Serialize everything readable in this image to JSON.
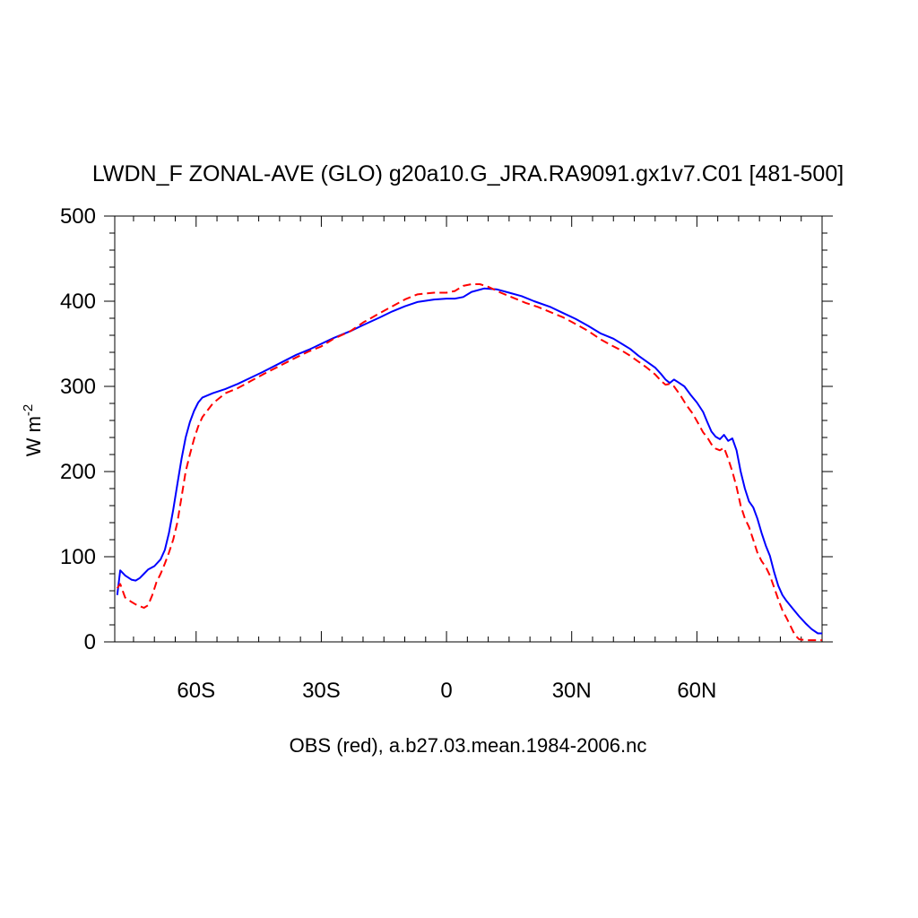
{
  "chart_data": {
    "type": "line",
    "title": "LWDN_F ZONAL-AVE (GLO) g20a10.G_JRA.RA9091.gx1v7.C01 [481-500]",
    "xlabel": "OBS (red), a.b27.03.mean.1984-2006.nc",
    "ylabel": {
      "base": "W m",
      "superscript": "-2"
    },
    "xlim": [
      -79.5,
      90
    ],
    "ylim": [
      0,
      500
    ],
    "x_ticks": [
      {
        "value": -60,
        "label": "60S"
      },
      {
        "value": -30,
        "label": "30S"
      },
      {
        "value": 0,
        "label": "0"
      },
      {
        "value": 30,
        "label": "30N"
      },
      {
        "value": 60,
        "label": "60N"
      }
    ],
    "y_ticks": [
      {
        "value": 0,
        "label": "0"
      },
      {
        "value": 100,
        "label": "100"
      },
      {
        "value": 200,
        "label": "200"
      },
      {
        "value": 300,
        "label": "300"
      },
      {
        "value": 400,
        "label": "400"
      },
      {
        "value": 500,
        "label": "500"
      }
    ],
    "x_minor_step": 5,
    "y_minor_step": 20,
    "grid": false,
    "legend": "none",
    "series": [
      {
        "color": "#0000ff",
        "dash": "solid",
        "points": [
          [
            -78.9,
            55
          ],
          [
            -78.2,
            84
          ],
          [
            -77,
            78
          ],
          [
            -75.5,
            73
          ],
          [
            -74.5,
            72
          ],
          [
            -73.5,
            75
          ],
          [
            -72.5,
            80
          ],
          [
            -71.5,
            85
          ],
          [
            -70,
            89
          ],
          [
            -68.5,
            97
          ],
          [
            -67.5,
            108
          ],
          [
            -66.5,
            128
          ],
          [
            -65.5,
            155
          ],
          [
            -64.5,
            185
          ],
          [
            -63.5,
            215
          ],
          [
            -62.5,
            240
          ],
          [
            -61.5,
            258
          ],
          [
            -60.5,
            271
          ],
          [
            -59.5,
            281
          ],
          [
            -58.5,
            287
          ],
          [
            -56,
            292
          ],
          [
            -53,
            297
          ],
          [
            -50,
            303
          ],
          [
            -47,
            310
          ],
          [
            -44,
            317
          ],
          [
            -40,
            327
          ],
          [
            -36,
            337
          ],
          [
            -33,
            343
          ],
          [
            -30,
            350
          ],
          [
            -27,
            357
          ],
          [
            -23,
            365
          ],
          [
            -20,
            372
          ],
          [
            -16,
            381
          ],
          [
            -13,
            388
          ],
          [
            -10,
            394
          ],
          [
            -7,
            399
          ],
          [
            -3,
            402
          ],
          [
            0,
            403
          ],
          [
            2,
            403
          ],
          [
            4,
            405
          ],
          [
            6,
            411
          ],
          [
            9,
            415
          ],
          [
            12,
            414
          ],
          [
            15,
            410
          ],
          [
            18,
            406
          ],
          [
            21,
            400
          ],
          [
            25,
            393
          ],
          [
            28,
            386
          ],
          [
            31,
            379
          ],
          [
            34,
            371
          ],
          [
            37,
            362
          ],
          [
            40,
            356
          ],
          [
            42,
            350
          ],
          [
            44,
            344
          ],
          [
            46,
            336
          ],
          [
            48,
            329
          ],
          [
            50,
            322
          ],
          [
            51.5,
            314
          ],
          [
            52.5,
            308
          ],
          [
            53.5,
            304
          ],
          [
            54.5,
            308
          ],
          [
            55.5,
            305
          ],
          [
            57,
            300
          ],
          [
            58.5,
            290
          ],
          [
            60,
            281
          ],
          [
            61.5,
            270
          ],
          [
            62.5,
            258
          ],
          [
            63.5,
            247
          ],
          [
            64.5,
            241
          ],
          [
            65.5,
            238
          ],
          [
            66.5,
            243
          ],
          [
            67.5,
            236
          ],
          [
            68.5,
            239
          ],
          [
            69.5,
            225
          ],
          [
            70.5,
            200
          ],
          [
            71.5,
            180
          ],
          [
            72.5,
            165
          ],
          [
            73.5,
            158
          ],
          [
            74.5,
            145
          ],
          [
            75.5,
            128
          ],
          [
            76.5,
            113
          ],
          [
            77.5,
            101
          ],
          [
            78.5,
            82
          ],
          [
            79.5,
            66
          ],
          [
            80.5,
            55
          ],
          [
            81.5,
            48
          ],
          [
            83,
            39
          ],
          [
            84.5,
            30
          ],
          [
            86,
            22
          ],
          [
            87.5,
            15
          ],
          [
            89,
            10
          ],
          [
            90,
            10
          ]
        ]
      },
      {
        "color": "#ff0000",
        "dash": "dashed",
        "points": [
          [
            -78.9,
            63
          ],
          [
            -78.2,
            68
          ],
          [
            -77,
            52
          ],
          [
            -75.5,
            47
          ],
          [
            -74.5,
            44
          ],
          [
            -73.5,
            42
          ],
          [
            -72.5,
            40
          ],
          [
            -71.5,
            43
          ],
          [
            -70.5,
            55
          ],
          [
            -69.5,
            70
          ],
          [
            -68.5,
            80
          ],
          [
            -67.5,
            92
          ],
          [
            -66.5,
            105
          ],
          [
            -65.5,
            120
          ],
          [
            -64.5,
            140
          ],
          [
            -63.5,
            170
          ],
          [
            -62.5,
            200
          ],
          [
            -61.5,
            220
          ],
          [
            -60.5,
            238
          ],
          [
            -59.5,
            253
          ],
          [
            -58.5,
            264
          ],
          [
            -56,
            280
          ],
          [
            -53,
            292
          ],
          [
            -50,
            298
          ],
          [
            -47,
            306
          ],
          [
            -44,
            314
          ],
          [
            -40,
            324
          ],
          [
            -36,
            334
          ],
          [
            -33,
            341
          ],
          [
            -30,
            347
          ],
          [
            -27,
            356
          ],
          [
            -23,
            365
          ],
          [
            -20,
            375
          ],
          [
            -16,
            386
          ],
          [
            -13,
            394
          ],
          [
            -10,
            402
          ],
          [
            -7,
            408
          ],
          [
            -3,
            410
          ],
          [
            0,
            410
          ],
          [
            2,
            412
          ],
          [
            4,
            418
          ],
          [
            6,
            420
          ],
          [
            8,
            420
          ],
          [
            10,
            417
          ],
          [
            13,
            410
          ],
          [
            16,
            404
          ],
          [
            19,
            398
          ],
          [
            22,
            393
          ],
          [
            25,
            387
          ],
          [
            28,
            381
          ],
          [
            31,
            373
          ],
          [
            34,
            365
          ],
          [
            37,
            355
          ],
          [
            40,
            347
          ],
          [
            42,
            342
          ],
          [
            44,
            336
          ],
          [
            46,
            329
          ],
          [
            48,
            322
          ],
          [
            50,
            314
          ],
          [
            51.5,
            306
          ],
          [
            52.5,
            302
          ],
          [
            53.5,
            303
          ],
          [
            54.5,
            300
          ],
          [
            56,
            290
          ],
          [
            57.5,
            278
          ],
          [
            59,
            268
          ],
          [
            60.5,
            255
          ],
          [
            61.5,
            246
          ],
          [
            62.5,
            240
          ],
          [
            63.5,
            232
          ],
          [
            64.5,
            227
          ],
          [
            65.5,
            225
          ],
          [
            66.5,
            228
          ],
          [
            67.5,
            215
          ],
          [
            68.5,
            200
          ],
          [
            69.5,
            182
          ],
          [
            70.5,
            160
          ],
          [
            71.5,
            145
          ],
          [
            72.5,
            135
          ],
          [
            73.5,
            120
          ],
          [
            74.5,
            105
          ],
          [
            75.5,
            95
          ],
          [
            76.5,
            88
          ],
          [
            77.5,
            78
          ],
          [
            78.5,
            64
          ],
          [
            79.5,
            50
          ],
          [
            80.5,
            37
          ],
          [
            81.5,
            28
          ],
          [
            82.5,
            18
          ],
          [
            83.5,
            8
          ],
          [
            84.5,
            3
          ],
          [
            86,
            2
          ],
          [
            88,
            2
          ],
          [
            90,
            2
          ]
        ]
      }
    ]
  }
}
